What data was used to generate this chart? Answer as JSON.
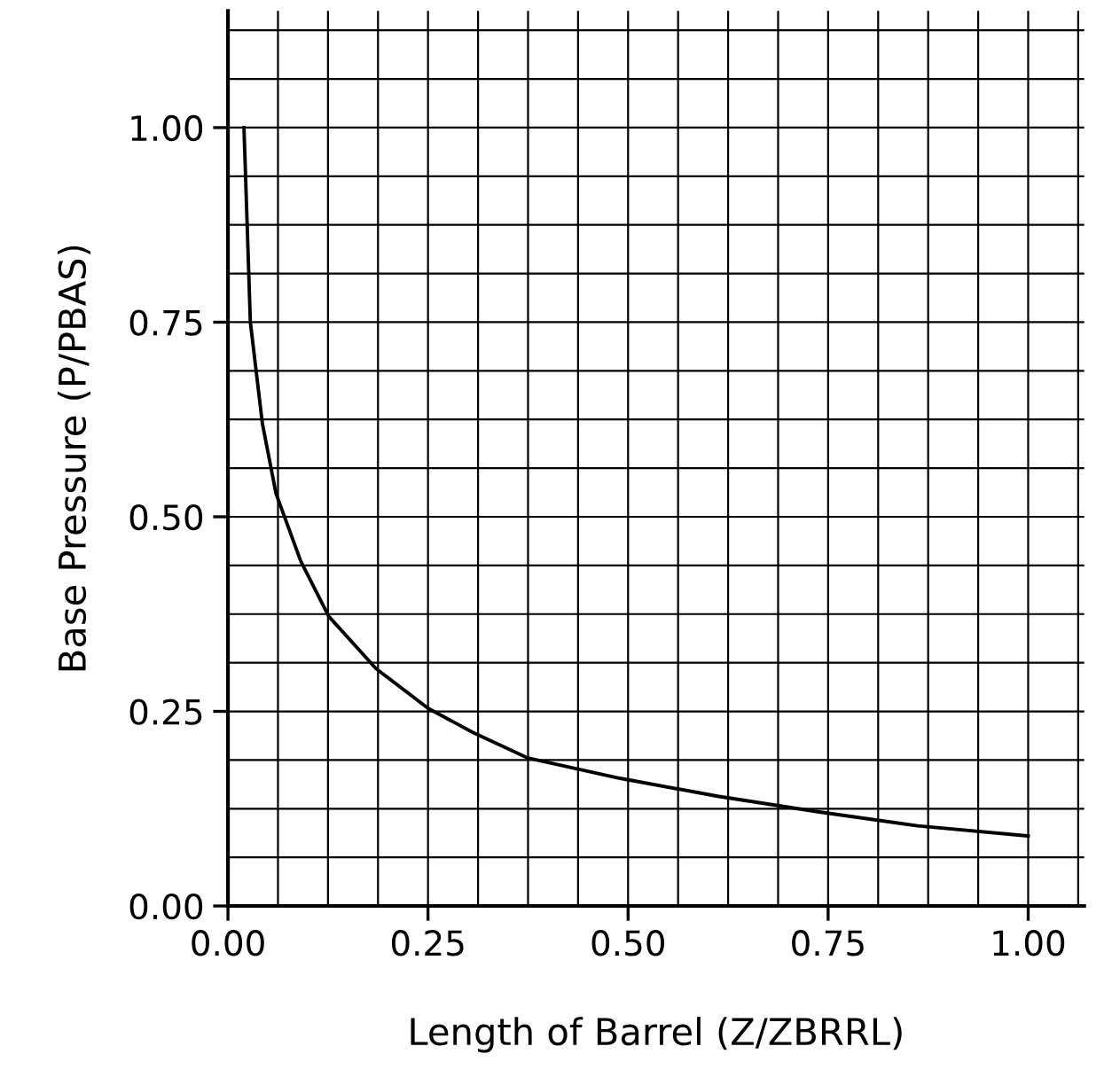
{
  "chart_data": {
    "type": "line",
    "xlabel": "Length of Barrel (Z/ZBRRL)",
    "ylabel": "Base Pressure (P/PBAS)",
    "x": [
      0.02,
      0.028,
      0.043,
      0.06,
      0.091,
      0.126,
      0.185,
      0.25,
      0.306,
      0.375,
      0.49,
      0.612,
      0.737,
      0.862,
      1.0
    ],
    "series": [
      {
        "color": "#000000",
        "values": [
          1.0,
          0.75,
          0.62,
          0.53,
          0.443,
          0.372,
          0.305,
          0.254,
          0.223,
          0.19,
          0.164,
          0.141,
          0.121,
          0.103,
          0.09
        ]
      }
    ],
    "xlim": [
      0,
      1.07
    ],
    "ylim": [
      0,
      1.15
    ],
    "xticks": [
      {
        "value": 0,
        "label": "0.00"
      },
      {
        "value": 0.0625,
        "label": null
      },
      {
        "value": 0.125,
        "label": null
      },
      {
        "value": 0.1875,
        "label": null
      },
      {
        "value": 0.25,
        "label": "0.25"
      },
      {
        "value": 0.3125,
        "label": null
      },
      {
        "value": 0.375,
        "label": null
      },
      {
        "value": 0.4375,
        "label": null
      },
      {
        "value": 0.5,
        "label": "0.50"
      },
      {
        "value": 0.5625,
        "label": null
      },
      {
        "value": 0.625,
        "label": null
      },
      {
        "value": 0.6875,
        "label": null
      },
      {
        "value": 0.75,
        "label": "0.75"
      },
      {
        "value": 0.8125,
        "label": null
      },
      {
        "value": 0.875,
        "label": null
      },
      {
        "value": 0.9375,
        "label": null
      },
      {
        "value": 1.0,
        "label": "1.00"
      },
      {
        "value": 1.0625,
        "label": null
      }
    ],
    "yticks": [
      {
        "value": 0,
        "label": "0.00"
      },
      {
        "value": 0.0625,
        "label": null
      },
      {
        "value": 0.125,
        "label": null
      },
      {
        "value": 0.1875,
        "label": null
      },
      {
        "value": 0.25,
        "label": "0.25"
      },
      {
        "value": 0.3125,
        "label": null
      },
      {
        "value": 0.375,
        "label": null
      },
      {
        "value": 0.4375,
        "label": null
      },
      {
        "value": 0.5,
        "label": "0.50"
      },
      {
        "value": 0.5625,
        "label": null
      },
      {
        "value": 0.625,
        "label": null
      },
      {
        "value": 0.6875,
        "label": null
      },
      {
        "value": 0.75,
        "label": "0.75"
      },
      {
        "value": 0.8125,
        "label": null
      },
      {
        "value": 0.875,
        "label": null
      },
      {
        "value": 0.9375,
        "label": null
      },
      {
        "value": 1.0,
        "label": "1.00"
      },
      {
        "value": 1.0625,
        "label": null
      },
      {
        "value": 1.125,
        "label": null
      }
    ],
    "grid": true,
    "marker": "none",
    "line_style": "solid"
  }
}
